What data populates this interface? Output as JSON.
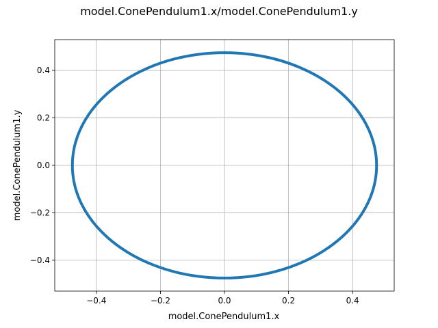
{
  "chart_data": {
    "type": "line",
    "title": "model.ConePendulum1.x/model.ConePendulum1.y",
    "xlabel": "model.ConePendulum1.x",
    "ylabel": "model.ConePendulum1.y",
    "xlim": [
      -0.53,
      0.53
    ],
    "ylim": [
      -0.53,
      0.53
    ],
    "xticks": [
      -0.4,
      -0.2,
      0.0,
      0.2,
      0.4
    ],
    "yticks": [
      -0.4,
      -0.2,
      0.0,
      0.2,
      0.4
    ],
    "xtick_labels": [
      "−0.4",
      "−0.2",
      "0.0",
      "0.2",
      "0.4"
    ],
    "ytick_labels": [
      "−0.4",
      "−0.2",
      "0.0",
      "0.2",
      "0.4"
    ],
    "grid": true,
    "series": [
      {
        "color": "#1f77b4",
        "x": [
          0.475,
          0.4464,
          0.3639,
          0.2375,
          0.0825,
          -0.0825,
          -0.2375,
          -0.3639,
          -0.4464,
          -0.475,
          -0.4464,
          -0.3639,
          -0.2375,
          -0.0825,
          0.0825,
          0.2375,
          0.3639,
          0.4464,
          0.475
        ],
        "y": [
          0.0,
          0.1625,
          0.3053,
          0.4114,
          0.4678,
          0.4678,
          0.4114,
          0.3053,
          0.1625,
          0.0,
          -0.1625,
          -0.3053,
          -0.4114,
          -0.4678,
          -0.4678,
          -0.4114,
          -0.3053,
          -0.1625,
          0.0
        ]
      }
    ]
  }
}
